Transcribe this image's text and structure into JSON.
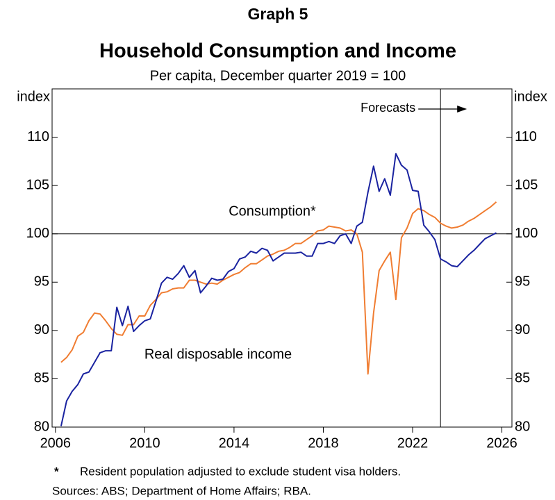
{
  "chart_data": {
    "type": "line",
    "graph_number": "Graph 5",
    "title": "Household Consumption and Income",
    "subtitle": "Per capita, December quarter 2019 = 100",
    "y_label": "index",
    "y2_label": "index",
    "xlim": [
      2005.85,
      2026.45
    ],
    "xticks": [
      2006,
      2010,
      2014,
      2018,
      2022,
      2026
    ],
    "ylim": [
      80,
      115
    ],
    "yticks": [
      80,
      85,
      90,
      95,
      100,
      105,
      110
    ],
    "y2lim": [
      80,
      115
    ],
    "y2ticks": [
      80,
      85,
      90,
      95,
      100,
      105,
      110
    ],
    "reference_y": 100,
    "grid": false,
    "annotation": {
      "text": "Forecasts",
      "x": 2023.25
    },
    "x": [
      2006.25,
      2006.5,
      2006.75,
      2007,
      2007.25,
      2007.5,
      2007.75,
      2008,
      2008.25,
      2008.5,
      2008.75,
      2009,
      2009.25,
      2009.5,
      2009.75,
      2010,
      2010.25,
      2010.5,
      2010.75,
      2011,
      2011.25,
      2011.5,
      2011.75,
      2012,
      2012.25,
      2012.5,
      2012.75,
      2013,
      2013.25,
      2013.5,
      2013.75,
      2014,
      2014.25,
      2014.5,
      2014.75,
      2015,
      2015.25,
      2015.5,
      2015.75,
      2016,
      2016.25,
      2016.5,
      2016.75,
      2017,
      2017.25,
      2017.5,
      2017.75,
      2018,
      2018.25,
      2018.5,
      2018.75,
      2019,
      2019.25,
      2019.5,
      2019.75,
      2020,
      2020.25,
      2020.5,
      2020.75,
      2021,
      2021.25,
      2021.5,
      2021.75,
      2022,
      2022.25,
      2022.5,
      2022.75,
      2023,
      2023.25,
      2023.5,
      2023.75,
      2024,
      2024.25,
      2024.5,
      2024.75,
      2025,
      2025.25,
      2025.5,
      2025.75
    ],
    "series": [
      {
        "name": "Consumption*",
        "color": "#f07d32",
        "values": [
          86.7,
          87.2,
          88.0,
          89.4,
          89.8,
          91.0,
          91.8,
          91.7,
          91.0,
          90.2,
          89.6,
          89.5,
          90.6,
          90.6,
          91.5,
          91.5,
          92.6,
          93.2,
          93.9,
          94.0,
          94.3,
          94.4,
          94.4,
          95.2,
          95.2,
          95.0,
          94.8,
          94.9,
          94.8,
          95.2,
          95.5,
          95.8,
          96.0,
          96.5,
          96.9,
          96.9,
          97.3,
          97.7,
          97.9,
          98.2,
          98.3,
          98.6,
          99.0,
          99.0,
          99.4,
          99.8,
          100.3,
          100.4,
          100.8,
          100.7,
          100.6,
          100.3,
          100.4,
          100.0,
          98.1,
          85.5,
          91.8,
          96.2,
          97.2,
          98.1,
          93.2,
          99.6,
          100.6,
          102.1,
          102.6,
          102.4,
          102.0,
          101.7,
          101.1,
          100.8,
          100.6,
          100.7,
          100.9,
          101.3,
          101.6,
          102.0,
          102.4,
          102.8,
          103.3
        ]
      },
      {
        "name": "Real disposable income",
        "color": "#1a23a0",
        "values": [
          80.1,
          82.7,
          83.7,
          84.4,
          85.5,
          85.7,
          86.7,
          87.7,
          87.9,
          87.9,
          92.4,
          90.5,
          92.5,
          89.9,
          90.5,
          91.0,
          91.2,
          93.0,
          94.9,
          95.5,
          95.3,
          95.9,
          96.7,
          95.5,
          96.2,
          93.9,
          94.6,
          95.4,
          95.2,
          95.3,
          96.1,
          96.4,
          97.4,
          97.6,
          98.2,
          98.0,
          98.5,
          98.3,
          97.2,
          97.6,
          98.0,
          98.0,
          98.0,
          98.1,
          97.7,
          97.7,
          99.0,
          99.0,
          99.2,
          99.0,
          99.8,
          100.0,
          99.0,
          100.8,
          101.2,
          104.3,
          107.0,
          104.4,
          105.7,
          104.0,
          108.3,
          107.1,
          106.6,
          104.5,
          104.4,
          100.9,
          100.2,
          99.4,
          97.4,
          97.1,
          96.7,
          96.6,
          97.2,
          97.8,
          98.3,
          98.9,
          99.5,
          99.8,
          100.1
        ]
      }
    ],
    "footnote_marker": "*",
    "footnote": "Resident population adjusted to exclude student visa holders.",
    "sources": "Sources: ABS; Department of Home Affairs; RBA."
  }
}
